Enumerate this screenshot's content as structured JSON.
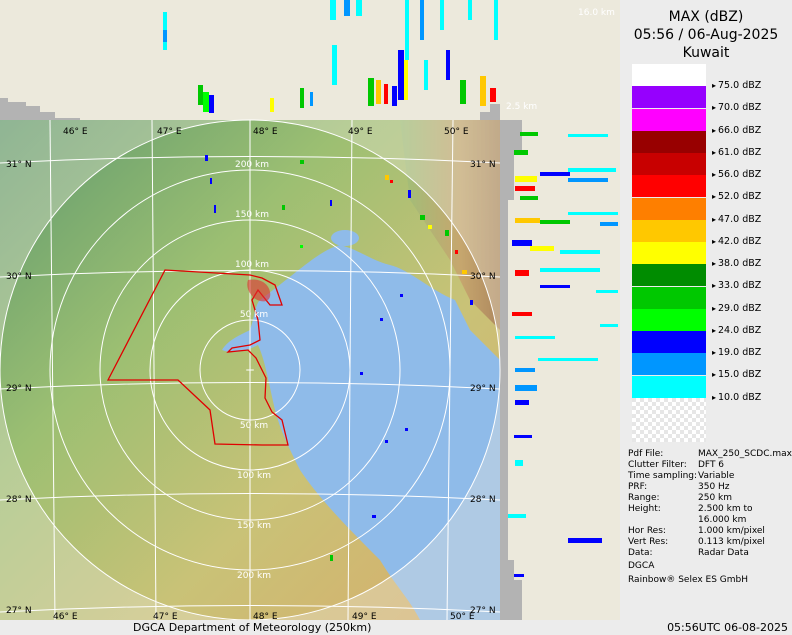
{
  "header": {
    "product": "MAX (dBZ)",
    "datetime": "05:56 / 06-Aug-2025",
    "site": "Kuwait"
  },
  "legend": {
    "entries": [
      {
        "label": "75.0 dBZ",
        "color": "#ffffff"
      },
      {
        "label": "70.0 dBZ",
        "color": "#9600fe"
      },
      {
        "label": "66.0 dBZ",
        "color": "#ff00ff"
      },
      {
        "label": "61.0 dBZ",
        "color": "#980000"
      },
      {
        "label": "56.0 dBZ",
        "color": "#c80000"
      },
      {
        "label": "52.0 dBZ",
        "color": "#ff0000"
      },
      {
        "label": "47.0 dBZ",
        "color": "#fe7f00"
      },
      {
        "label": "42.0 dBZ",
        "color": "#ffc800"
      },
      {
        "label": "38.0 dBZ",
        "color": "#ffff00"
      },
      {
        "label": "33.0 dBZ",
        "color": "#008c00"
      },
      {
        "label": "29.0 dBZ",
        "color": "#00c800"
      },
      {
        "label": "24.0 dBZ",
        "color": "#00ff00"
      },
      {
        "label": "19.0 dBZ",
        "color": "#0000fe"
      },
      {
        "label": "15.0 dBZ",
        "color": "#0096ff"
      },
      {
        "label": "10.0 dBZ",
        "color": "#00ffff"
      }
    ]
  },
  "info": {
    "rows": [
      {
        "key": "Pdf File:",
        "value": "MAX_250_SCDC.max"
      },
      {
        "key": "Clutter Filter:",
        "value": "DFT 6"
      },
      {
        "key": "Time sampling:",
        "value": "Variable"
      },
      {
        "key": "PRF:",
        "value": "350 Hz"
      },
      {
        "key": "Range:",
        "value": "250 km"
      },
      {
        "key": "Height:",
        "value": "2.500 km to"
      },
      {
        "key": "",
        "value": "16.000 km"
      },
      {
        "key": "Hor Res:",
        "value": "1.000 km/pixel"
      },
      {
        "key": "Vert Res:",
        "value": "0.113 km/pixel"
      },
      {
        "key": "Data:",
        "value": "Radar Data"
      }
    ],
    "org": "DGCA",
    "vendor": "Rainbow® Selex ES GmbH"
  },
  "footer": {
    "left": "DGCA Department of Meteorology (250km)",
    "right": "05:56UTC 06-08-2025"
  },
  "map": {
    "lon_labels": [
      "46° E",
      "47° E",
      "48° E",
      "49° E",
      "50° E"
    ],
    "lat_labels": [
      "31° N",
      "30° N",
      "29° N",
      "28° N",
      "27° N"
    ],
    "range_labels_north": [
      "200 km",
      "150 km",
      "100 km",
      "50 km"
    ],
    "range_labels_south": [
      "50 km",
      "100 km",
      "150 km",
      "200 km"
    ],
    "height_top": "16.0 km",
    "height_bottom": "2.5 km",
    "colors": {
      "sea": "#8fbbe9",
      "outside": "#ece9dc",
      "border": "#e00000"
    }
  }
}
